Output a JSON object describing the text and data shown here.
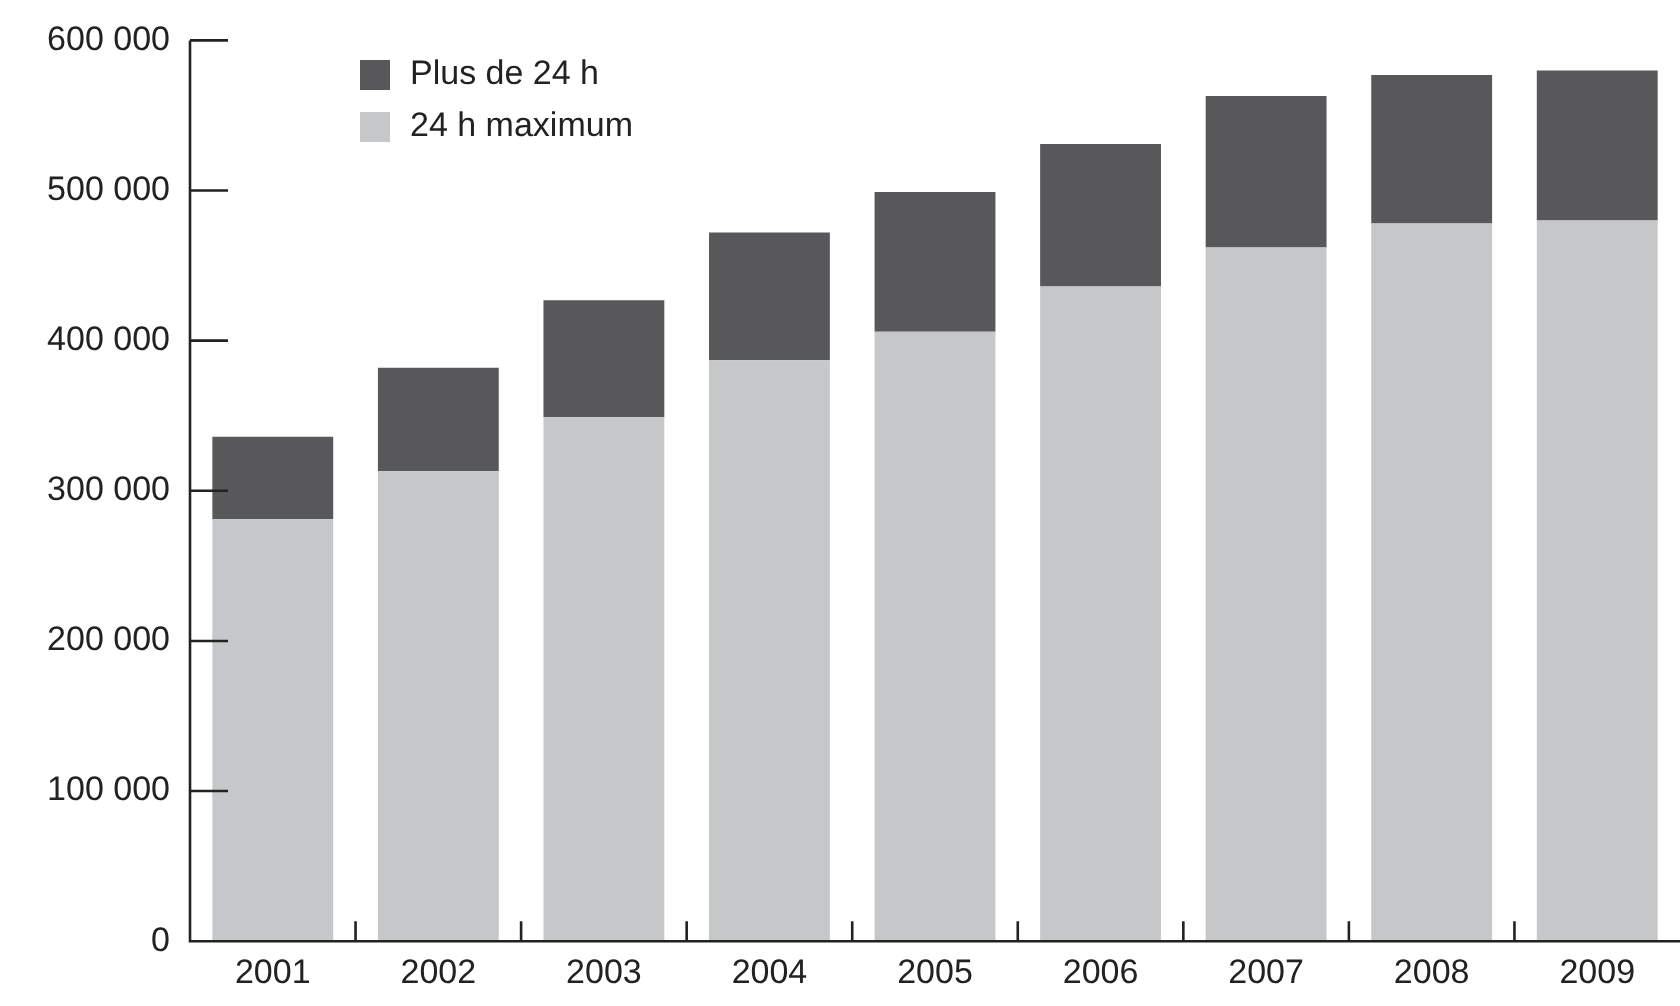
{
  "chart_data": {
    "type": "bar",
    "stacked": true,
    "categories": [
      "2001",
      "2002",
      "2003",
      "2004",
      "2005",
      "2006",
      "2007",
      "2008",
      "2009"
    ],
    "series": [
      {
        "name": "24 h maximum",
        "color": "#c6c7c9",
        "values": [
          281000,
          313000,
          349000,
          387000,
          406000,
          436000,
          462000,
          478000,
          480000
        ]
      },
      {
        "name": "Plus de 24 h",
        "color": "#58585a",
        "values": [
          55000,
          69000,
          78000,
          85000,
          93000,
          95000,
          101000,
          99000,
          100000
        ]
      }
    ],
    "ylim": [
      0,
      600000
    ],
    "yticks": [
      {
        "value": 0,
        "label": "0"
      },
      {
        "value": 100000,
        "label": "100 000"
      },
      {
        "value": 200000,
        "label": "200 000"
      },
      {
        "value": 300000,
        "label": "300 000"
      },
      {
        "value": 400000,
        "label": "400 000"
      },
      {
        "value": 500000,
        "label": "500 000"
      },
      {
        "value": 600000,
        "label": "600 000"
      }
    ],
    "grid": false,
    "legend": "top left"
  }
}
